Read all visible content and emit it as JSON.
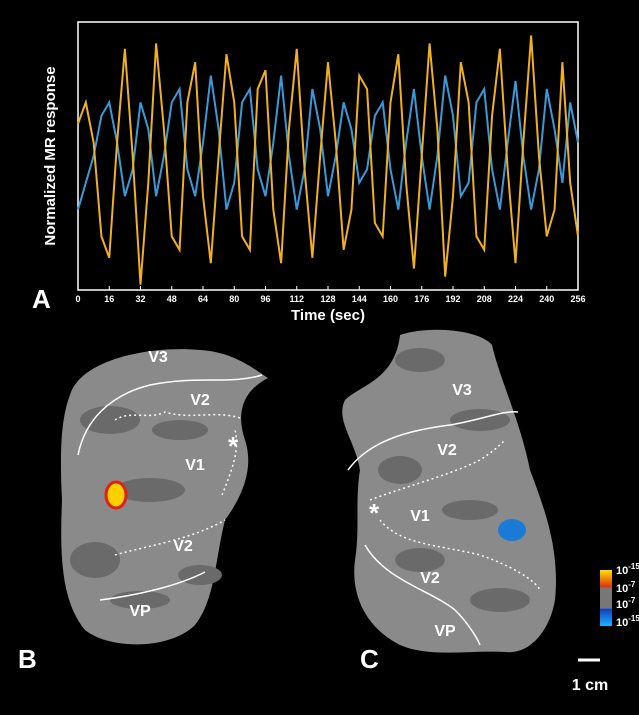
{
  "chart_data": {
    "type": "line",
    "panel_label": "A",
    "ylabel": "Normalized MR response",
    "xlabel": "Time (sec)",
    "x": [
      0,
      4,
      8,
      12,
      16,
      20,
      24,
      28,
      32,
      36,
      40,
      44,
      48,
      52,
      56,
      60,
      64,
      68,
      72,
      76,
      80,
      84,
      88,
      92,
      96,
      100,
      104,
      108,
      112,
      116,
      120,
      124,
      128,
      132,
      136,
      140,
      144,
      148,
      152,
      156,
      160,
      164,
      168,
      172,
      176,
      180,
      184,
      188,
      192,
      196,
      200,
      204,
      208,
      212,
      216,
      220,
      224,
      228,
      232,
      236,
      240,
      244,
      248,
      252,
      256
    ],
    "series": [
      {
        "color": "#f0b020",
        "values": [
          0.62,
          0.7,
          0.55,
          0.2,
          0.12,
          0.55,
          0.9,
          0.5,
          0.02,
          0.4,
          0.92,
          0.6,
          0.2,
          0.15,
          0.7,
          0.85,
          0.35,
          0.1,
          0.5,
          0.88,
          0.7,
          0.2,
          0.15,
          0.75,
          0.82,
          0.3,
          0.1,
          0.6,
          0.9,
          0.45,
          0.12,
          0.5,
          0.85,
          0.55,
          0.15,
          0.3,
          0.8,
          0.75,
          0.25,
          0.2,
          0.7,
          0.88,
          0.4,
          0.08,
          0.5,
          0.92,
          0.6,
          0.05,
          0.35,
          0.85,
          0.7,
          0.2,
          0.15,
          0.65,
          0.9,
          0.45,
          0.1,
          0.55,
          0.95,
          0.5,
          0.2,
          0.3,
          0.85,
          0.4,
          0.2
        ]
      },
      {
        "color": "#3a9ad8",
        "values": [
          0.3,
          0.4,
          0.5,
          0.65,
          0.7,
          0.55,
          0.35,
          0.45,
          0.7,
          0.6,
          0.35,
          0.5,
          0.7,
          0.75,
          0.45,
          0.35,
          0.55,
          0.8,
          0.6,
          0.3,
          0.4,
          0.7,
          0.75,
          0.45,
          0.35,
          0.55,
          0.8,
          0.5,
          0.3,
          0.45,
          0.75,
          0.6,
          0.35,
          0.5,
          0.7,
          0.6,
          0.4,
          0.45,
          0.65,
          0.7,
          0.45,
          0.3,
          0.55,
          0.75,
          0.5,
          0.3,
          0.5,
          0.8,
          0.65,
          0.35,
          0.4,
          0.7,
          0.75,
          0.45,
          0.3,
          0.55,
          0.78,
          0.5,
          0.3,
          0.45,
          0.75,
          0.6,
          0.4,
          0.7,
          0.55
        ]
      }
    ],
    "xlim": [
      0,
      256
    ],
    "xticks": [
      0,
      16,
      32,
      48,
      64,
      80,
      96,
      112,
      128,
      144,
      160,
      176,
      192,
      208,
      224,
      240,
      256
    ],
    "ylim": [
      0,
      1
    ]
  },
  "maps": [
    {
      "panel": "B",
      "labels": [
        "V3",
        "V2",
        "V1",
        "*",
        "V2",
        "VP"
      ]
    },
    {
      "panel": "C",
      "labels": [
        "V3",
        "V2",
        "V1",
        "*",
        "V2",
        "VP"
      ]
    }
  ],
  "colorbar": [
    {
      "base": "10",
      "exponent": "-15"
    },
    {
      "base": "10",
      "exponent": "-7"
    },
    {
      "base": "10",
      "exponent": "-7"
    },
    {
      "base": "10",
      "exponent": "-15"
    }
  ],
  "scale_bar": "1 cm"
}
